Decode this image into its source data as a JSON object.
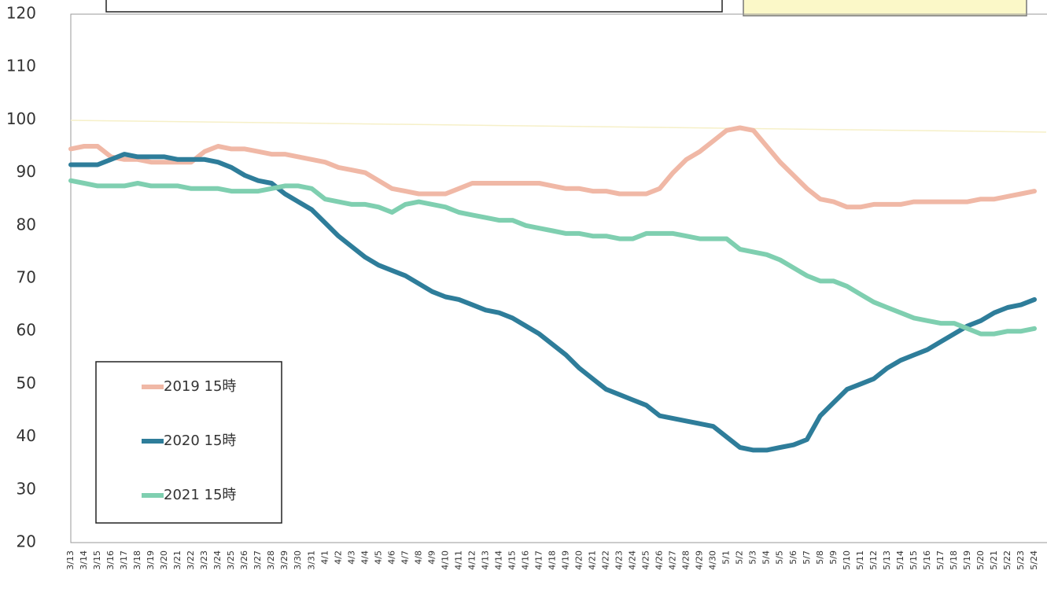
{
  "chart_data": {
    "type": "line",
    "categories": [
      "3/13",
      "3/14",
      "3/15",
      "3/16",
      "3/17",
      "3/18",
      "3/19",
      "3/20",
      "3/21",
      "3/22",
      "3/23",
      "3/24",
      "3/25",
      "3/26",
      "3/27",
      "3/28",
      "3/29",
      "3/30",
      "3/31",
      "4/1",
      "4/2",
      "4/3",
      "4/4",
      "4/5",
      "4/6",
      "4/7",
      "4/8",
      "4/9",
      "4/10",
      "4/11",
      "4/12",
      "4/13",
      "4/14",
      "4/15",
      "4/16",
      "4/17",
      "4/18",
      "4/19",
      "4/20",
      "4/21",
      "4/22",
      "4/23",
      "4/24",
      "4/25",
      "4/26",
      "4/27",
      "4/28",
      "4/29",
      "4/30",
      "5/1",
      "5/2",
      "5/3",
      "5/4",
      "5/5",
      "5/6",
      "5/7",
      "5/8",
      "5/9",
      "5/10",
      "5/11",
      "5/12",
      "5/13",
      "5/14",
      "5/15",
      "5/16",
      "5/17",
      "5/18",
      "5/19",
      "5/20",
      "5/21",
      "5/22",
      "5/23",
      "5/24"
    ],
    "series": [
      {
        "name": "2019 15時",
        "color": "#f0b8a6",
        "values": [
          94.5,
          95,
          95,
          93,
          92.5,
          92.5,
          92,
          92,
          92,
          92,
          94,
          95,
          94.5,
          94.5,
          94,
          93.5,
          93.5,
          93,
          92.5,
          92,
          91,
          90.5,
          90,
          88.5,
          87,
          86.5,
          86,
          86,
          86,
          87,
          88,
          88,
          88,
          88,
          88,
          88,
          87.5,
          87,
          87,
          86.5,
          86.5,
          86,
          86,
          86,
          87,
          90,
          92.5,
          94,
          96,
          98,
          98.5,
          98,
          95,
          92,
          89.5,
          87,
          85,
          84.5,
          83.5,
          83.5,
          84,
          84,
          84,
          84.5,
          84.5,
          84.5,
          84.5,
          84.5,
          85,
          85,
          85.5,
          86,
          86.5
        ]
      },
      {
        "name": "2020 15時",
        "color": "#2e7d9a",
        "values": [
          91.5,
          91.5,
          91.5,
          92.5,
          93.5,
          93,
          93,
          93,
          92.5,
          92.5,
          92.5,
          92,
          91,
          89.5,
          88.5,
          88,
          86,
          84.5,
          83,
          80.5,
          78,
          76,
          74,
          72.5,
          71.5,
          70.5,
          69,
          67.5,
          66.5,
          66,
          65,
          64,
          63.5,
          62.5,
          61,
          59.5,
          57.5,
          55.5,
          53,
          51,
          49,
          48,
          47,
          46,
          44,
          43.5,
          43,
          42.5,
          42,
          40,
          38,
          37.5,
          37.5,
          38,
          38.5,
          39.5,
          44,
          46.5,
          49,
          50,
          51,
          53,
          54.5,
          55.5,
          56.5,
          58,
          59.5,
          61,
          62,
          63.5,
          64.5,
          65,
          66
        ]
      },
      {
        "name": "2021 15時",
        "color": "#7fcfb0",
        "values": [
          88.5,
          88,
          87.5,
          87.5,
          87.5,
          88,
          87.5,
          87.5,
          87.5,
          87,
          87,
          87,
          86.5,
          86.5,
          86.5,
          87,
          87.5,
          87.5,
          87,
          85,
          84.5,
          84,
          84,
          83.5,
          82.5,
          84,
          84.5,
          84,
          83.5,
          82.5,
          82,
          81.5,
          81,
          81,
          80,
          79.5,
          79,
          78.5,
          78.5,
          78,
          78,
          77.5,
          77.5,
          78.5,
          78.5,
          78.5,
          78,
          77.5,
          77.5,
          77.5,
          75.5,
          75,
          74.5,
          73.5,
          72,
          70.5,
          69.5,
          69.5,
          68.5,
          67,
          65.5,
          64.5,
          63.5,
          62.5,
          62,
          61.5,
          61.5,
          60.5,
          59.5,
          59.5,
          60,
          60,
          60.5
        ]
      }
    ],
    "ylim": [
      20,
      120
    ],
    "yticks": [
      20,
      30,
      40,
      50,
      60,
      70,
      80,
      90,
      100,
      110,
      120
    ],
    "grid": false
  }
}
